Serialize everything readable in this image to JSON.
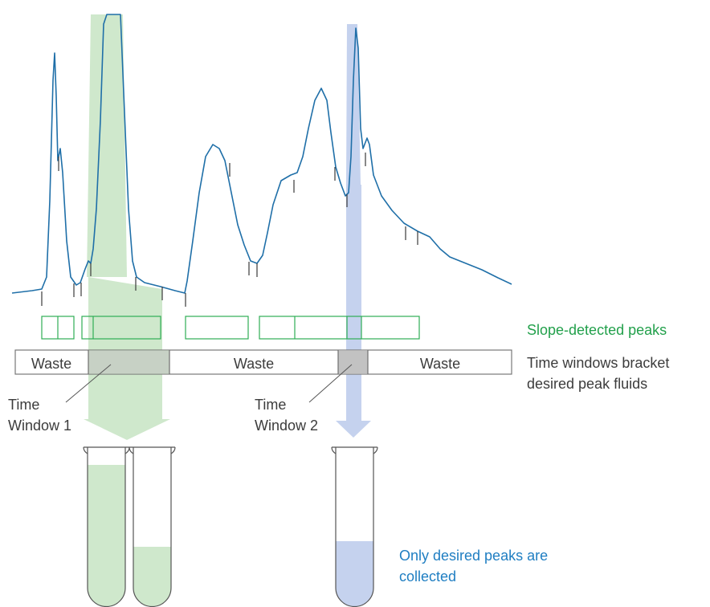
{
  "labels": {
    "waste_1": "Waste",
    "waste_2": "Waste",
    "waste_3": "Waste",
    "slope_detected": "Slope-detected peaks",
    "time_windows_line1": "Time windows bracket",
    "time_windows_line2": "desired peak fluids",
    "tw1_line1": "Time",
    "tw1_line2": "Window 1",
    "tw2_line1": "Time",
    "tw2_line2": "Window 2",
    "collected_line1": "Only desired peaks are",
    "collected_line2": "collected"
  },
  "colors": {
    "trace": "#1f6fa8",
    "green_box": "#2fae55",
    "green_fill": "#cfe8cc",
    "blue_fill": "#c5d2ee",
    "window_fill": "#bdbdbd",
    "green_text": "#22a04b",
    "blue_text": "#1f7ec2",
    "gray_text": "#3c3c3c"
  }
}
